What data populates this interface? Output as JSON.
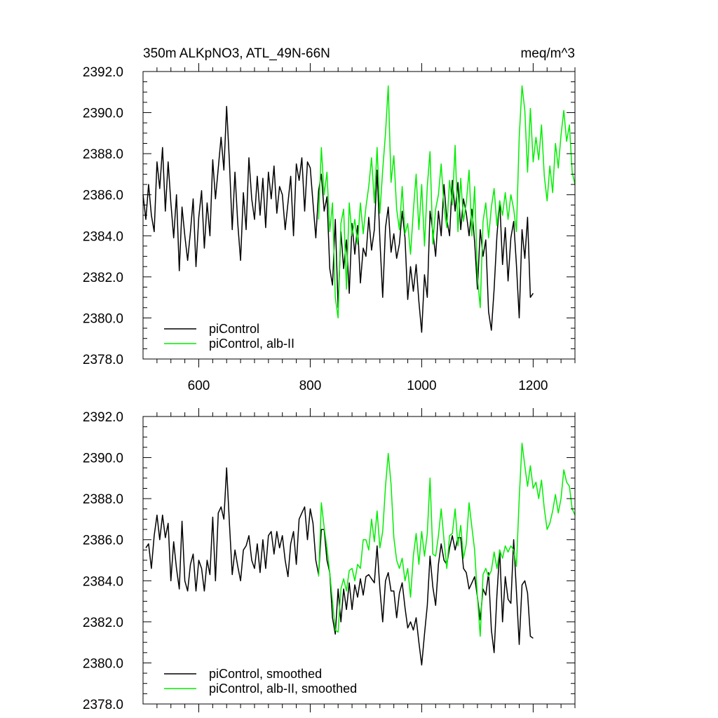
{
  "chart_data": [
    {
      "type": "line",
      "title_left": "350m ALKpNO3, ATL_49N-66N",
      "title_right": "meq/m^3",
      "xlim": [
        500,
        1275
      ],
      "ylim": [
        2378,
        2392
      ],
      "x_ticks": [
        600,
        800,
        1000,
        1200
      ],
      "x_tick_labels": [
        "600",
        "800",
        "1000",
        "1200"
      ],
      "y_ticks": [
        2378,
        2380,
        2382,
        2384,
        2386,
        2388,
        2390,
        2392
      ],
      "y_tick_labels": [
        "2378.0",
        "2380.0",
        "2382.0",
        "2384.0",
        "2386.0",
        "2388.0",
        "2390.0",
        "2392.0"
      ],
      "legend_position": "bottom-left",
      "series": [
        {
          "name": "piControl",
          "color": "#000000",
          "x": [
            500,
            505,
            510,
            515,
            520,
            525,
            530,
            535,
            540,
            545,
            550,
            555,
            560,
            565,
            570,
            575,
            580,
            585,
            590,
            595,
            600,
            605,
            610,
            615,
            620,
            625,
            630,
            635,
            640,
            645,
            650,
            655,
            660,
            665,
            670,
            675,
            680,
            685,
            690,
            695,
            700,
            705,
            710,
            715,
            720,
            725,
            730,
            735,
            740,
            745,
            750,
            755,
            760,
            765,
            770,
            775,
            780,
            785,
            790,
            795,
            800,
            805,
            810,
            815,
            820,
            825,
            830,
            835,
            840,
            845,
            850,
            855,
            860,
            865,
            870,
            875,
            880,
            885,
            890,
            895,
            900,
            905,
            910,
            915,
            920,
            925,
            930,
            935,
            940,
            945,
            950,
            955,
            960,
            965,
            970,
            975,
            980,
            985,
            990,
            995,
            1000,
            1005,
            1010,
            1015,
            1020,
            1025,
            1030,
            1035,
            1040,
            1045,
            1050,
            1055,
            1060,
            1065,
            1070,
            1075,
            1080,
            1085,
            1090,
            1095,
            1100,
            1105,
            1110,
            1115,
            1120,
            1125,
            1130,
            1135,
            1140,
            1145,
            1150,
            1155,
            1160,
            1165,
            1170,
            1175,
            1180,
            1185,
            1190,
            1195,
            1200
          ],
          "y": [
            2386.0,
            2384.8,
            2386.5,
            2385.0,
            2384.2,
            2387.6,
            2386.3,
            2388.3,
            2385.2,
            2387.6,
            2385.6,
            2383.9,
            2386.0,
            2382.3,
            2385.4,
            2384.0,
            2382.8,
            2384.2,
            2385.8,
            2382.5,
            2384.9,
            2386.2,
            2383.4,
            2385.6,
            2384.0,
            2387.7,
            2385.8,
            2387.3,
            2388.8,
            2387.2,
            2390.3,
            2387.6,
            2384.3,
            2387.1,
            2384.6,
            2382.8,
            2386.1,
            2384.3,
            2387.8,
            2385.8,
            2384.8,
            2386.9,
            2385.0,
            2386.8,
            2384.4,
            2387.1,
            2385.8,
            2387.4,
            2385.1,
            2386.4,
            2386.0,
            2384.3,
            2385.6,
            2386.9,
            2384.0,
            2387.5,
            2386.7,
            2387.8,
            2385.2,
            2387.6,
            2387.3,
            2385.6,
            2383.9,
            2386.2,
            2387.0,
            2385.2,
            2385.9,
            2382.4,
            2381.6,
            2384.8,
            2380.5,
            2384.2,
            2382.4,
            2383.8,
            2381.2,
            2384.6,
            2383.1,
            2384.5,
            2381.7,
            2383.4,
            2383.0,
            2384.9,
            2383.3,
            2384.3,
            2387.2,
            2383.8,
            2381.0,
            2384.4,
            2385.4,
            2383.2,
            2384.1,
            2382.9,
            2383.6,
            2385.2,
            2383.9,
            2380.9,
            2382.5,
            2381.3,
            2382.6,
            2380.8,
            2379.3,
            2382.1,
            2381.0,
            2385.2,
            2384.2,
            2383.0,
            2385.2,
            2384.0,
            2386.5,
            2384.8,
            2384.0,
            2386.7,
            2385.2,
            2386.6,
            2384.3,
            2385.8,
            2385.1,
            2384.0,
            2385.3,
            2383.7,
            2381.4,
            2384.3,
            2383.0,
            2383.8,
            2380.3,
            2379.4,
            2381.4,
            2384.0,
            2385.7,
            2382.6,
            2384.4,
            2381.8,
            2383.9,
            2384.7,
            2382.6,
            2380.0,
            2384.3,
            2382.9,
            2384.9,
            2381.0,
            2381.2
          ]
        },
        {
          "name": "piControl, alb-II",
          "color": "#00ee00",
          "x": [
            815,
            820,
            825,
            830,
            835,
            840,
            845,
            850,
            855,
            860,
            865,
            870,
            875,
            880,
            885,
            890,
            895,
            900,
            905,
            910,
            915,
            920,
            925,
            930,
            935,
            940,
            945,
            950,
            955,
            960,
            965,
            970,
            975,
            980,
            985,
            990,
            995,
            1000,
            1005,
            1010,
            1015,
            1020,
            1025,
            1030,
            1035,
            1040,
            1045,
            1050,
            1055,
            1060,
            1065,
            1070,
            1075,
            1080,
            1085,
            1090,
            1095,
            1100,
            1105,
            1110,
            1115,
            1120,
            1125,
            1130,
            1135,
            1140,
            1145,
            1150,
            1155,
            1160,
            1165,
            1170,
            1175,
            1180,
            1185,
            1190,
            1195,
            1200,
            1205,
            1210,
            1215,
            1220,
            1225,
            1230,
            1235,
            1240,
            1245,
            1250,
            1255,
            1260,
            1265,
            1270,
            1275
          ],
          "y": [
            2384.8,
            2388.3,
            2386.0,
            2387.1,
            2384.2,
            2385.6,
            2381.0,
            2380.0,
            2384.6,
            2385.3,
            2381.4,
            2385.6,
            2384.0,
            2384.8,
            2383.6,
            2385.6,
            2384.1,
            2385.4,
            2386.4,
            2387.8,
            2385.6,
            2388.3,
            2385.1,
            2387.2,
            2389.0,
            2391.3,
            2386.6,
            2387.9,
            2385.3,
            2384.3,
            2386.4,
            2384.1,
            2384.6,
            2383.1,
            2385.2,
            2387.0,
            2384.3,
            2386.5,
            2383.5,
            2386.4,
            2388.1,
            2383.6,
            2385.3,
            2386.0,
            2387.5,
            2385.4,
            2384.4,
            2386.7,
            2385.5,
            2388.4,
            2384.2,
            2386.8,
            2384.7,
            2385.6,
            2387.2,
            2384.0,
            2386.4,
            2382.0,
            2380.5,
            2384.7,
            2385.6,
            2383.9,
            2385.4,
            2386.3,
            2384.5,
            2385.7,
            2385.0,
            2386.1,
            2384.8,
            2386.0,
            2385.3,
            2384.2,
            2388.8,
            2391.3,
            2390.1,
            2387.1,
            2390.2,
            2387.6,
            2388.8,
            2387.7,
            2389.4,
            2386.9,
            2385.7,
            2387.4,
            2386.1,
            2388.5,
            2387.3,
            2388.9,
            2390.1,
            2388.6,
            2389.4,
            2387.1,
            2386.5
          ]
        }
      ]
    },
    {
      "type": "line",
      "xlim": [
        500,
        1275
      ],
      "ylim": [
        2378,
        2392
      ],
      "x_ticks": [
        600,
        800,
        1000,
        1200
      ],
      "y_ticks": [
        2378,
        2380,
        2382,
        2384,
        2386,
        2388,
        2390,
        2392
      ],
      "y_tick_labels": [
        "2378.0",
        "2380.0",
        "2382.0",
        "2384.0",
        "2386.0",
        "2388.0",
        "2390.0",
        "2392.0"
      ],
      "legend_position": "bottom-left",
      "series": [
        {
          "name": "piControl, smoothed",
          "color": "#000000",
          "x": [
            505,
            510,
            515,
            520,
            525,
            530,
            535,
            540,
            545,
            550,
            555,
            560,
            565,
            570,
            575,
            580,
            585,
            590,
            595,
            600,
            605,
            610,
            615,
            620,
            625,
            630,
            635,
            640,
            645,
            650,
            655,
            660,
            665,
            670,
            675,
            680,
            685,
            690,
            695,
            700,
            705,
            710,
            715,
            720,
            725,
            730,
            735,
            740,
            745,
            750,
            755,
            760,
            765,
            770,
            775,
            780,
            785,
            790,
            795,
            800,
            805,
            810,
            815,
            820,
            825,
            830,
            835,
            840,
            845,
            850,
            855,
            860,
            865,
            870,
            875,
            880,
            885,
            890,
            895,
            900,
            905,
            910,
            915,
            920,
            925,
            930,
            935,
            940,
            945,
            950,
            955,
            960,
            965,
            970,
            975,
            980,
            985,
            990,
            995,
            1000,
            1005,
            1010,
            1015,
            1020,
            1025,
            1030,
            1035,
            1040,
            1045,
            1050,
            1055,
            1060,
            1065,
            1070,
            1075,
            1080,
            1085,
            1090,
            1095,
            1100,
            1105,
            1110,
            1115,
            1120,
            1125,
            1130,
            1135,
            1140,
            1145,
            1150,
            1155,
            1160,
            1165,
            1170,
            1175,
            1180,
            1185,
            1190,
            1195,
            1200
          ],
          "y": [
            2385.6,
            2385.8,
            2384.6,
            2386.2,
            2387.2,
            2386.0,
            2387.2,
            2386.1,
            2386.8,
            2384.0,
            2385.9,
            2384.6,
            2383.6,
            2386.9,
            2384.0,
            2383.5,
            2384.8,
            2385.3,
            2383.5,
            2385.0,
            2384.6,
            2383.5,
            2385.0,
            2384.3,
            2387.1,
            2384.0,
            2387.3,
            2387.6,
            2387.0,
            2389.5,
            2386.8,
            2384.3,
            2385.5,
            2384.7,
            2384.0,
            2385.5,
            2385.7,
            2386.2,
            2385.0,
            2384.6,
            2385.8,
            2384.4,
            2386.0,
            2384.6,
            2386.2,
            2386.4,
            2385.3,
            2386.4,
            2385.6,
            2386.2,
            2385.0,
            2384.2,
            2385.8,
            2386.4,
            2384.8,
            2387.0,
            2387.3,
            2387.6,
            2386.0,
            2387.5,
            2386.8,
            2385.0,
            2384.3,
            2386.5,
            2386.5,
            2385.0,
            2384.4,
            2382.2,
            2381.4,
            2383.6,
            2382.0,
            2383.6,
            2382.6,
            2383.9,
            2382.6,
            2383.8,
            2383.2,
            2384.1,
            2383.3,
            2384.2,
            2384.3,
            2384.1,
            2383.9,
            2385.7,
            2383.6,
            2382.0,
            2384.0,
            2384.4,
            2383.5,
            2383.5,
            2382.2,
            2383.4,
            2383.9,
            2382.7,
            2381.7,
            2382.0,
            2381.6,
            2382.2,
            2381.0,
            2379.9,
            2381.4,
            2382.8,
            2385.2,
            2383.7,
            2382.8,
            2384.8,
            2385.8,
            2385.0,
            2384.8,
            2385.6,
            2386.2,
            2385.5,
            2386.1,
            2386.1,
            2384.6,
            2384.4,
            2383.6,
            2383.9,
            2384.2,
            2383.2,
            2382.1,
            2383.6,
            2383.3,
            2384.4,
            2381.6,
            2380.5,
            2383.3,
            2385.5,
            2382.0,
            2384.2,
            2383.1,
            2382.9,
            2386.0,
            2383.5,
            2380.9,
            2383.8,
            2384.0,
            2383.4,
            2381.3,
            2381.2
          ]
        },
        {
          "name": "piControl, alb-II, smoothed",
          "color": "#00ee00",
          "x": [
            815,
            820,
            825,
            830,
            835,
            840,
            845,
            850,
            855,
            860,
            865,
            870,
            875,
            880,
            885,
            890,
            895,
            900,
            905,
            910,
            915,
            920,
            925,
            930,
            935,
            940,
            945,
            950,
            955,
            960,
            965,
            970,
            975,
            980,
            985,
            990,
            995,
            1000,
            1005,
            1010,
            1015,
            1020,
            1025,
            1030,
            1035,
            1040,
            1045,
            1050,
            1055,
            1060,
            1065,
            1070,
            1075,
            1080,
            1085,
            1090,
            1095,
            1100,
            1105,
            1110,
            1115,
            1120,
            1125,
            1130,
            1135,
            1140,
            1145,
            1150,
            1155,
            1160,
            1165,
            1170,
            1175,
            1180,
            1185,
            1190,
            1195,
            1200,
            1205,
            1210,
            1215,
            1220,
            1225,
            1230,
            1235,
            1240,
            1245,
            1250,
            1255,
            1260,
            1265,
            1270,
            1275
          ],
          "y": [
            2384.2,
            2387.8,
            2386.6,
            2385.6,
            2384.4,
            2383.0,
            2381.6,
            2381.5,
            2383.6,
            2384.1,
            2383.5,
            2384.5,
            2384.6,
            2384.0,
            2384.8,
            2384.6,
            2386.0,
            2386.0,
            2385.5,
            2387.0,
            2385.9,
            2387.4,
            2385.6,
            2386.4,
            2388.6,
            2390.2,
            2388.7,
            2386.1,
            2385.0,
            2384.6,
            2385.1,
            2384.0,
            2384.6,
            2383.2,
            2385.2,
            2386.3,
            2384.8,
            2386.4,
            2385.2,
            2386.3,
            2389.0,
            2385.3,
            2385.2,
            2386.2,
            2387.5,
            2386.0,
            2384.6,
            2386.2,
            2386.3,
            2387.5,
            2385.7,
            2386.7,
            2385.1,
            2385.8,
            2387.8,
            2386.6,
            2385.5,
            2383.2,
            2381.3,
            2384.3,
            2384.6,
            2384.2,
            2384.5,
            2385.4,
            2384.6,
            2385.5,
            2385.1,
            2385.7,
            2385.4,
            2385.7,
            2385.5,
            2384.7,
            2388.0,
            2390.7,
            2389.6,
            2388.6,
            2389.6,
            2388.5,
            2388.8,
            2388.0,
            2388.9,
            2387.5,
            2386.5,
            2386.8,
            2387.4,
            2388.2,
            2387.3,
            2388.0,
            2389.4,
            2388.8,
            2388.6,
            2387.5,
            2387.2
          ]
        }
      ]
    }
  ]
}
